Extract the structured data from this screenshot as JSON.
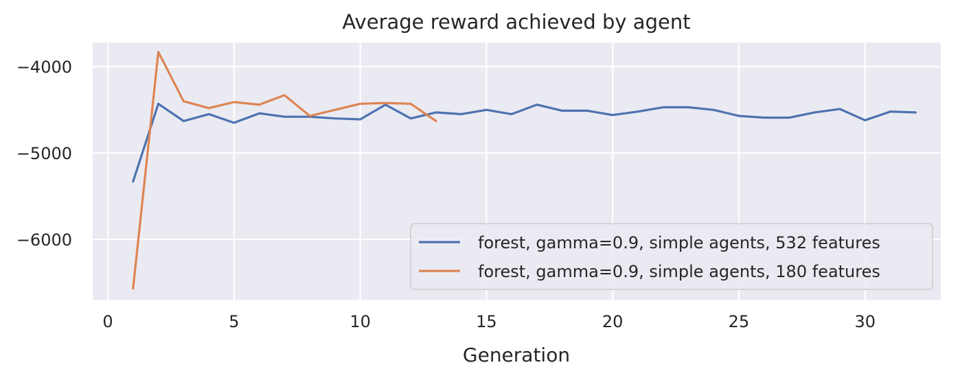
{
  "chart_data": {
    "type": "line",
    "title": "Average reward achieved by agent",
    "xlabel": "Generation",
    "ylabel": "",
    "xlim": [
      -0.6,
      33.0
    ],
    "ylim": [
      -6700,
      -3720
    ],
    "xticks": [
      0,
      5,
      10,
      15,
      20,
      25,
      30
    ],
    "yticks": [
      -6000,
      -5000,
      -4000
    ],
    "grid": true,
    "legend_position": "lower-right",
    "series": [
      {
        "name": "forest, gamma=0.9, simple agents, 532 features",
        "color": "#4c72b0",
        "x": [
          1,
          2,
          3,
          4,
          5,
          6,
          7,
          8,
          9,
          10,
          11,
          12,
          13,
          14,
          15,
          16,
          17,
          18,
          19,
          20,
          21,
          22,
          23,
          24,
          25,
          26,
          27,
          28,
          29,
          30,
          31,
          32
        ],
        "values": [
          -5330,
          -4430,
          -4630,
          -4550,
          -4650,
          -4540,
          -4580,
          -4580,
          -4600,
          -4610,
          -4440,
          -4600,
          -4530,
          -4550,
          -4500,
          -4550,
          -4440,
          -4510,
          -4510,
          -4560,
          -4520,
          -4470,
          -4470,
          -4500,
          -4570,
          -4590,
          -4590,
          -4530,
          -4490,
          -4620,
          -4520,
          -4530
        ]
      },
      {
        "name": "forest, gamma=0.9, simple agents, 180 features",
        "color": "#dd8452",
        "x": [
          1,
          2,
          3,
          4,
          5,
          6,
          7,
          8,
          9,
          10,
          11,
          12,
          13
        ],
        "values": [
          -6570,
          -3830,
          -4400,
          -4480,
          -4410,
          -4440,
          -4330,
          -4570,
          -4500,
          -4430,
          -4420,
          -4430,
          -4630
        ]
      }
    ]
  }
}
